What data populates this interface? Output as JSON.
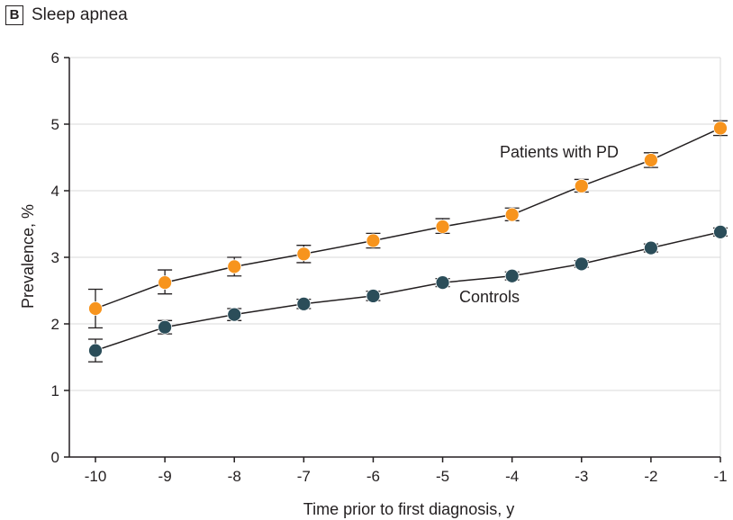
{
  "panel": {
    "label": "B",
    "title": "Sleep apnea"
  },
  "chart_data": {
    "type": "line",
    "title": "Sleep apnea",
    "xlabel": "Time prior to first diagnosis, y",
    "ylabel": "Prevalence, %",
    "xlim": [
      -10,
      -1
    ],
    "ylim": [
      0,
      6
    ],
    "x_ticks": [
      -10,
      -9,
      -8,
      -7,
      -6,
      -5,
      -4,
      -3,
      -2,
      -1
    ],
    "y_ticks": [
      0,
      1,
      2,
      3,
      4,
      5,
      6
    ],
    "grid": "horizontal",
    "legend": "inline labels",
    "x": [
      -10,
      -9,
      -8,
      -7,
      -6,
      -5,
      -4,
      -3,
      -2,
      -1
    ],
    "series": [
      {
        "name": "Patients with PD",
        "color": "#f7941d",
        "values": [
          2.23,
          2.62,
          2.86,
          3.05,
          3.25,
          3.46,
          3.64,
          4.07,
          4.46,
          4.94
        ],
        "err_low": [
          1.94,
          2.45,
          2.72,
          2.92,
          3.14,
          3.36,
          3.55,
          3.98,
          4.35,
          4.83
        ],
        "err_high": [
          2.52,
          2.81,
          3.0,
          3.18,
          3.36,
          3.58,
          3.74,
          4.17,
          4.57,
          5.05
        ]
      },
      {
        "name": "Controls",
        "color": "#2b4d59",
        "values": [
          1.6,
          1.95,
          2.14,
          2.3,
          2.42,
          2.62,
          2.72,
          2.9,
          3.14,
          3.38
        ],
        "err_low": [
          1.43,
          1.85,
          2.05,
          2.23,
          2.35,
          2.56,
          2.66,
          2.85,
          3.08,
          3.32
        ],
        "err_high": [
          1.77,
          2.05,
          2.23,
          2.37,
          2.49,
          2.68,
          2.78,
          2.95,
          3.2,
          3.44
        ]
      }
    ]
  }
}
